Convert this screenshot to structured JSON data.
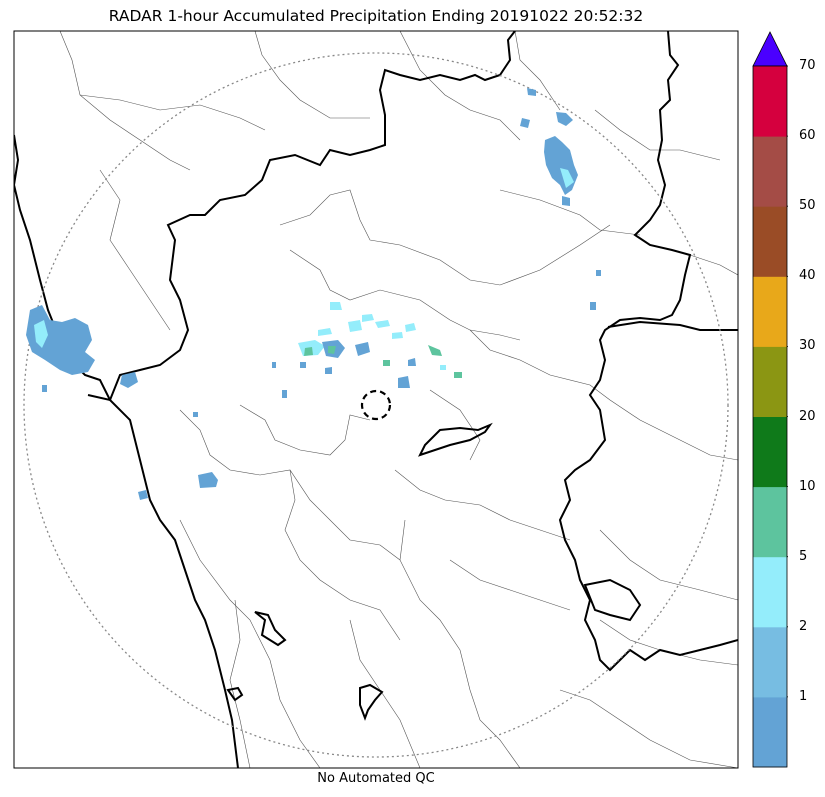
{
  "title": "RADAR 1-hour Accumulated Precipitation Ending 20191022 20:52:32",
  "caption": "No Automated QC",
  "colorbar": {
    "labels": [
      "1",
      "2",
      "5",
      "10",
      "20",
      "30",
      "40",
      "50",
      "60",
      "70"
    ],
    "colors": [
      "#63a3d5",
      "#77bde2",
      "#94edfb",
      "#5dc49e",
      "#0f7a1a",
      "#8b9613",
      "#e8a81a",
      "#9a4c26",
      "#a44c46",
      "#d5003e"
    ],
    "extend_color": "#4a00ff"
  },
  "map": {
    "radar_range_ring": "dotted",
    "radar_site_marker": "dashed-circle",
    "echo_colors": {
      "light": "#63a3d5",
      "moderate": "#94edfb",
      "teal": "#5dc49e"
    }
  }
}
